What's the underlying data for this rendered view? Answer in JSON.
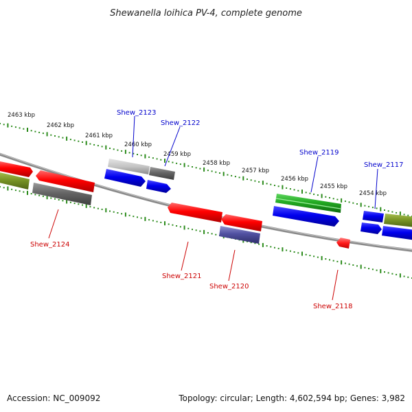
{
  "title": "Shewanella loihica PV-4, complete genome",
  "footer": {
    "accession": "Accession: NC_009092",
    "summary": "Topology: circular; Length: 4,602,594 bp; Genes: 3,982"
  },
  "colors": {
    "tick": "#2a8a1a",
    "backbone": "#8a8a8a",
    "forward_label": "#0000cc",
    "reverse_label": "#cc0000"
  },
  "kbp_labels": [
    {
      "text": "2463 kbp",
      "pos": 2463
    },
    {
      "text": "2462 kbp",
      "pos": 2462
    },
    {
      "text": "2461 kbp",
      "pos": 2461
    },
    {
      "text": "2460 kbp",
      "pos": 2460
    },
    {
      "text": "2459 kbp",
      "pos": 2459
    },
    {
      "text": "2458 kbp",
      "pos": 2458
    },
    {
      "text": "2457 kbp",
      "pos": 2457
    },
    {
      "text": "2456 kbp",
      "pos": 2456
    },
    {
      "text": "2455 kbp",
      "pos": 2455
    },
    {
      "text": "2454 kbp",
      "pos": 2454
    }
  ],
  "gene_labels": [
    {
      "text": "Shew_2123",
      "strand": "forward"
    },
    {
      "text": "Shew_2122",
      "strand": "forward"
    },
    {
      "text": "Shew_2119",
      "strand": "forward"
    },
    {
      "text": "Shew_2117",
      "strand": "forward"
    },
    {
      "text": "Shew_2124",
      "strand": "reverse"
    },
    {
      "text": "Shew_2121",
      "strand": "reverse"
    },
    {
      "text": "Shew_2120",
      "strand": "reverse"
    },
    {
      "text": "Shew_2118",
      "strand": "reverse"
    }
  ]
}
